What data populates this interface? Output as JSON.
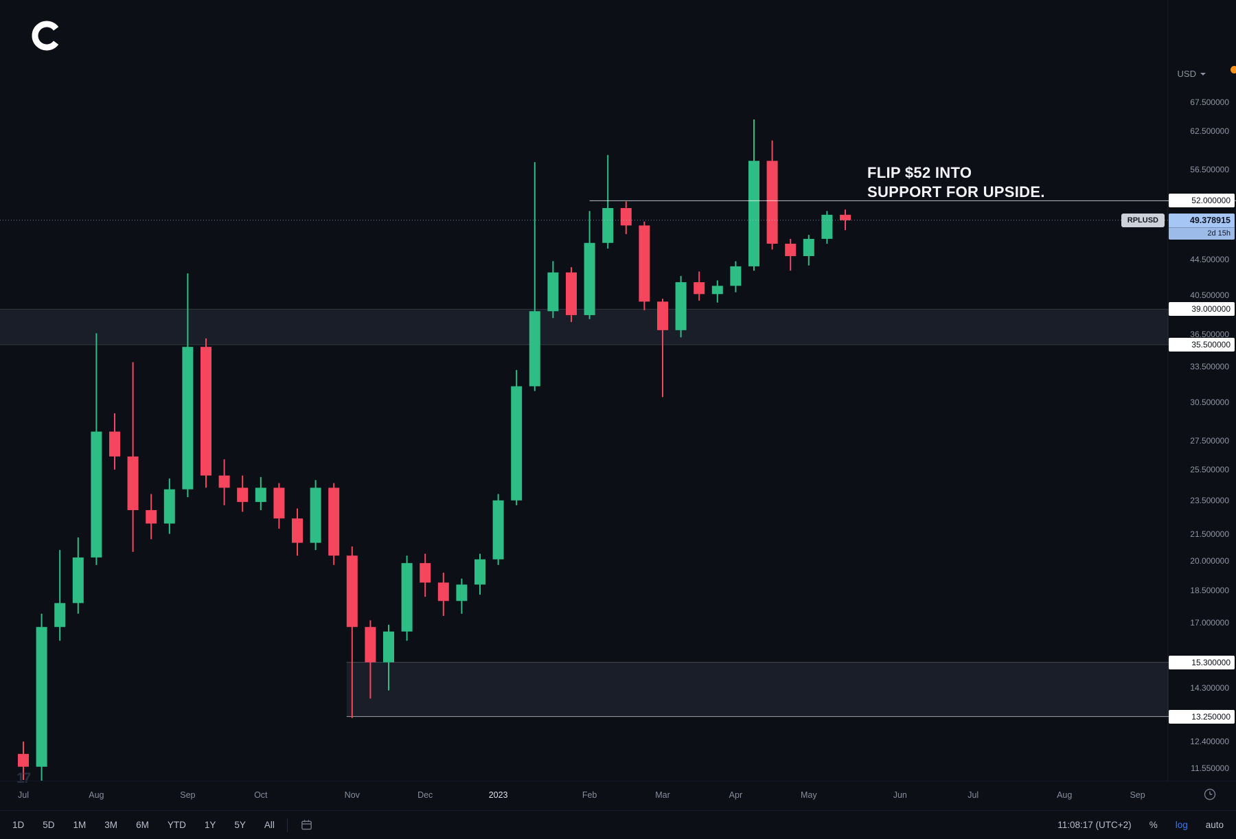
{
  "header": {
    "currency": "USD"
  },
  "symbol": {
    "ticker": "RPLUSD",
    "last_price": "49.378915",
    "countdown": "2d 15h"
  },
  "annotation": {
    "line1": "FLIP $52 INTO",
    "line2": "SUPPORT FOR UPSIDE."
  },
  "icons": {
    "tradingview_mark": "17"
  },
  "toolbar": {
    "ranges": [
      "1D",
      "5D",
      "1M",
      "3M",
      "6M",
      "YTD",
      "1Y",
      "5Y",
      "All"
    ],
    "clock": "11:08:17 (UTC+2)",
    "percent": "%",
    "log_label": "log",
    "auto_label": "auto"
  },
  "colors": {
    "background": "#0c0f16",
    "up": "#2ebd85",
    "down": "#f6465d",
    "axis_text": "#8f96a3",
    "white_label_bg": "#ffffff",
    "blue_label_bg": "#a6c6f5",
    "zone_fill": "rgba(173,186,220,0.09)",
    "line_52": "rgba(255,255,255,0.75)",
    "dotted_line": "rgba(190,205,230,0.6)",
    "orange_dot": "#f7931a"
  },
  "chart_data": {
    "type": "candlestick",
    "symbol": "RPLUSD",
    "scale": "log",
    "y_domain": [
      11.0,
      70.0
    ],
    "y_axis_ticks": [
      {
        "label": "67.500000",
        "value": 67.5,
        "style": "plain"
      },
      {
        "label": "62.500000",
        "value": 62.5,
        "style": "plain"
      },
      {
        "label": "56.500000",
        "value": 56.5,
        "style": "plain"
      },
      {
        "label": "52.000000",
        "value": 52.0,
        "style": "white"
      },
      {
        "label": "44.500000",
        "value": 44.5,
        "style": "plain"
      },
      {
        "label": "40.500000",
        "value": 40.5,
        "style": "plain"
      },
      {
        "label": "39.000000",
        "value": 39.0,
        "style": "white"
      },
      {
        "label": "36.500000",
        "value": 36.5,
        "style": "plain"
      },
      {
        "label": "35.500000",
        "value": 35.5,
        "style": "white"
      },
      {
        "label": "33.500000",
        "value": 33.5,
        "style": "plain"
      },
      {
        "label": "30.500000",
        "value": 30.5,
        "style": "plain"
      },
      {
        "label": "27.500000",
        "value": 27.5,
        "style": "plain"
      },
      {
        "label": "25.500000",
        "value": 25.5,
        "style": "plain"
      },
      {
        "label": "23.500000",
        "value": 23.5,
        "style": "plain"
      },
      {
        "label": "21.500000",
        "value": 21.5,
        "style": "plain"
      },
      {
        "label": "20.000000",
        "value": 20.0,
        "style": "plain"
      },
      {
        "label": "18.500000",
        "value": 18.5,
        "style": "plain"
      },
      {
        "label": "17.000000",
        "value": 17.0,
        "style": "plain"
      },
      {
        "label": "15.300000",
        "value": 15.3,
        "style": "white"
      },
      {
        "label": "14.300000",
        "value": 14.3,
        "style": "plain"
      },
      {
        "label": "13.250000",
        "value": 13.25,
        "style": "white"
      },
      {
        "label": "12.400000",
        "value": 12.4,
        "style": "plain"
      },
      {
        "label": "11.550000",
        "value": 11.55,
        "style": "plain"
      }
    ],
    "x_axis_ticks": [
      {
        "label": "Jul",
        "index": 0
      },
      {
        "label": "Aug",
        "index": 4
      },
      {
        "label": "Sep",
        "index": 9
      },
      {
        "label": "Oct",
        "index": 13
      },
      {
        "label": "Nov",
        "index": 18
      },
      {
        "label": "Dec",
        "index": 22
      },
      {
        "label": "2023",
        "index": 26,
        "emphasis": true
      },
      {
        "label": "Feb",
        "index": 31
      },
      {
        "label": "Mar",
        "index": 35
      },
      {
        "label": "Apr",
        "index": 39
      },
      {
        "label": "May",
        "index": 43
      },
      {
        "label": "Jun",
        "index": 48
      },
      {
        "label": "Jul",
        "index": 52
      },
      {
        "label": "Aug",
        "index": 57
      },
      {
        "label": "Sep",
        "index": 61
      }
    ],
    "candles_ohlc": [
      [
        12.0,
        12.4,
        11.2,
        11.6
      ],
      [
        11.6,
        17.4,
        11.1,
        16.8
      ],
      [
        16.8,
        20.6,
        16.2,
        17.9
      ],
      [
        17.9,
        21.3,
        17.4,
        20.2
      ],
      [
        20.2,
        36.6,
        19.8,
        28.2
      ],
      [
        28.2,
        29.6,
        25.5,
        26.4
      ],
      [
        26.4,
        33.9,
        20.5,
        22.9
      ],
      [
        22.9,
        23.9,
        21.2,
        22.1
      ],
      [
        22.1,
        24.9,
        21.5,
        24.2
      ],
      [
        24.2,
        42.9,
        23.7,
        35.3
      ],
      [
        35.3,
        36.1,
        24.3,
        25.1
      ],
      [
        25.1,
        26.2,
        23.2,
        24.3
      ],
      [
        24.3,
        25.1,
        22.8,
        23.4
      ],
      [
        23.4,
        25.0,
        22.9,
        24.3
      ],
      [
        24.3,
        24.6,
        21.8,
        22.4
      ],
      [
        22.4,
        23.0,
        20.3,
        21.0
      ],
      [
        21.0,
        24.8,
        20.6,
        24.3
      ],
      [
        24.3,
        24.6,
        19.8,
        20.3
      ],
      [
        20.3,
        20.8,
        13.2,
        16.8
      ],
      [
        16.8,
        17.1,
        13.9,
        15.3
      ],
      [
        15.3,
        16.9,
        14.2,
        16.6
      ],
      [
        16.6,
        20.3,
        16.2,
        19.9
      ],
      [
        19.9,
        20.4,
        18.2,
        18.9
      ],
      [
        18.9,
        19.4,
        17.3,
        18.0
      ],
      [
        18.0,
        19.1,
        17.4,
        18.8
      ],
      [
        18.8,
        20.4,
        18.3,
        20.1
      ],
      [
        20.1,
        23.9,
        19.8,
        23.5
      ],
      [
        23.5,
        33.2,
        23.2,
        31.8
      ],
      [
        31.8,
        57.6,
        31.4,
        38.8
      ],
      [
        38.8,
        44.3,
        38.1,
        43.0
      ],
      [
        43.0,
        43.6,
        37.7,
        38.4
      ],
      [
        38.4,
        50.6,
        38.0,
        46.5
      ],
      [
        46.5,
        58.7,
        45.8,
        51.0
      ],
      [
        51.0,
        51.9,
        47.6,
        48.7
      ],
      [
        48.7,
        49.2,
        38.9,
        39.8
      ],
      [
        39.8,
        40.1,
        30.9,
        36.9
      ],
      [
        36.9,
        42.6,
        36.2,
        41.9
      ],
      [
        41.9,
        43.1,
        39.9,
        40.6
      ],
      [
        40.6,
        42.1,
        39.7,
        41.5
      ],
      [
        41.5,
        44.3,
        40.8,
        43.7
      ],
      [
        43.7,
        64.5,
        43.2,
        57.8
      ],
      [
        57.8,
        61.0,
        45.7,
        46.4
      ],
      [
        46.4,
        47.0,
        43.2,
        44.9
      ],
      [
        44.9,
        47.5,
        43.8,
        47.0
      ],
      [
        47.0,
        50.6,
        46.4,
        50.1
      ],
      [
        50.1,
        50.8,
        48.1,
        49.378915
      ]
    ],
    "lines": [
      {
        "name": "resistance-52",
        "label": "52.000000",
        "value": 52.0,
        "style": "solid",
        "x_start_index": 31
      },
      {
        "name": "last-price",
        "label": "49.378915",
        "value": 49.378915,
        "style": "dotted",
        "x_start_index": null
      }
    ],
    "zones": [
      {
        "name": "supply-zone",
        "from": 35.5,
        "to": 39.0,
        "x_start_index": null,
        "top_opacity": 0.14,
        "bottom_opacity": 0.14
      },
      {
        "name": "demand-zone",
        "from": 13.25,
        "to": 15.3,
        "x_start_index": 18,
        "top_opacity": 0.22,
        "bottom_opacity": 0.6
      }
    ]
  }
}
